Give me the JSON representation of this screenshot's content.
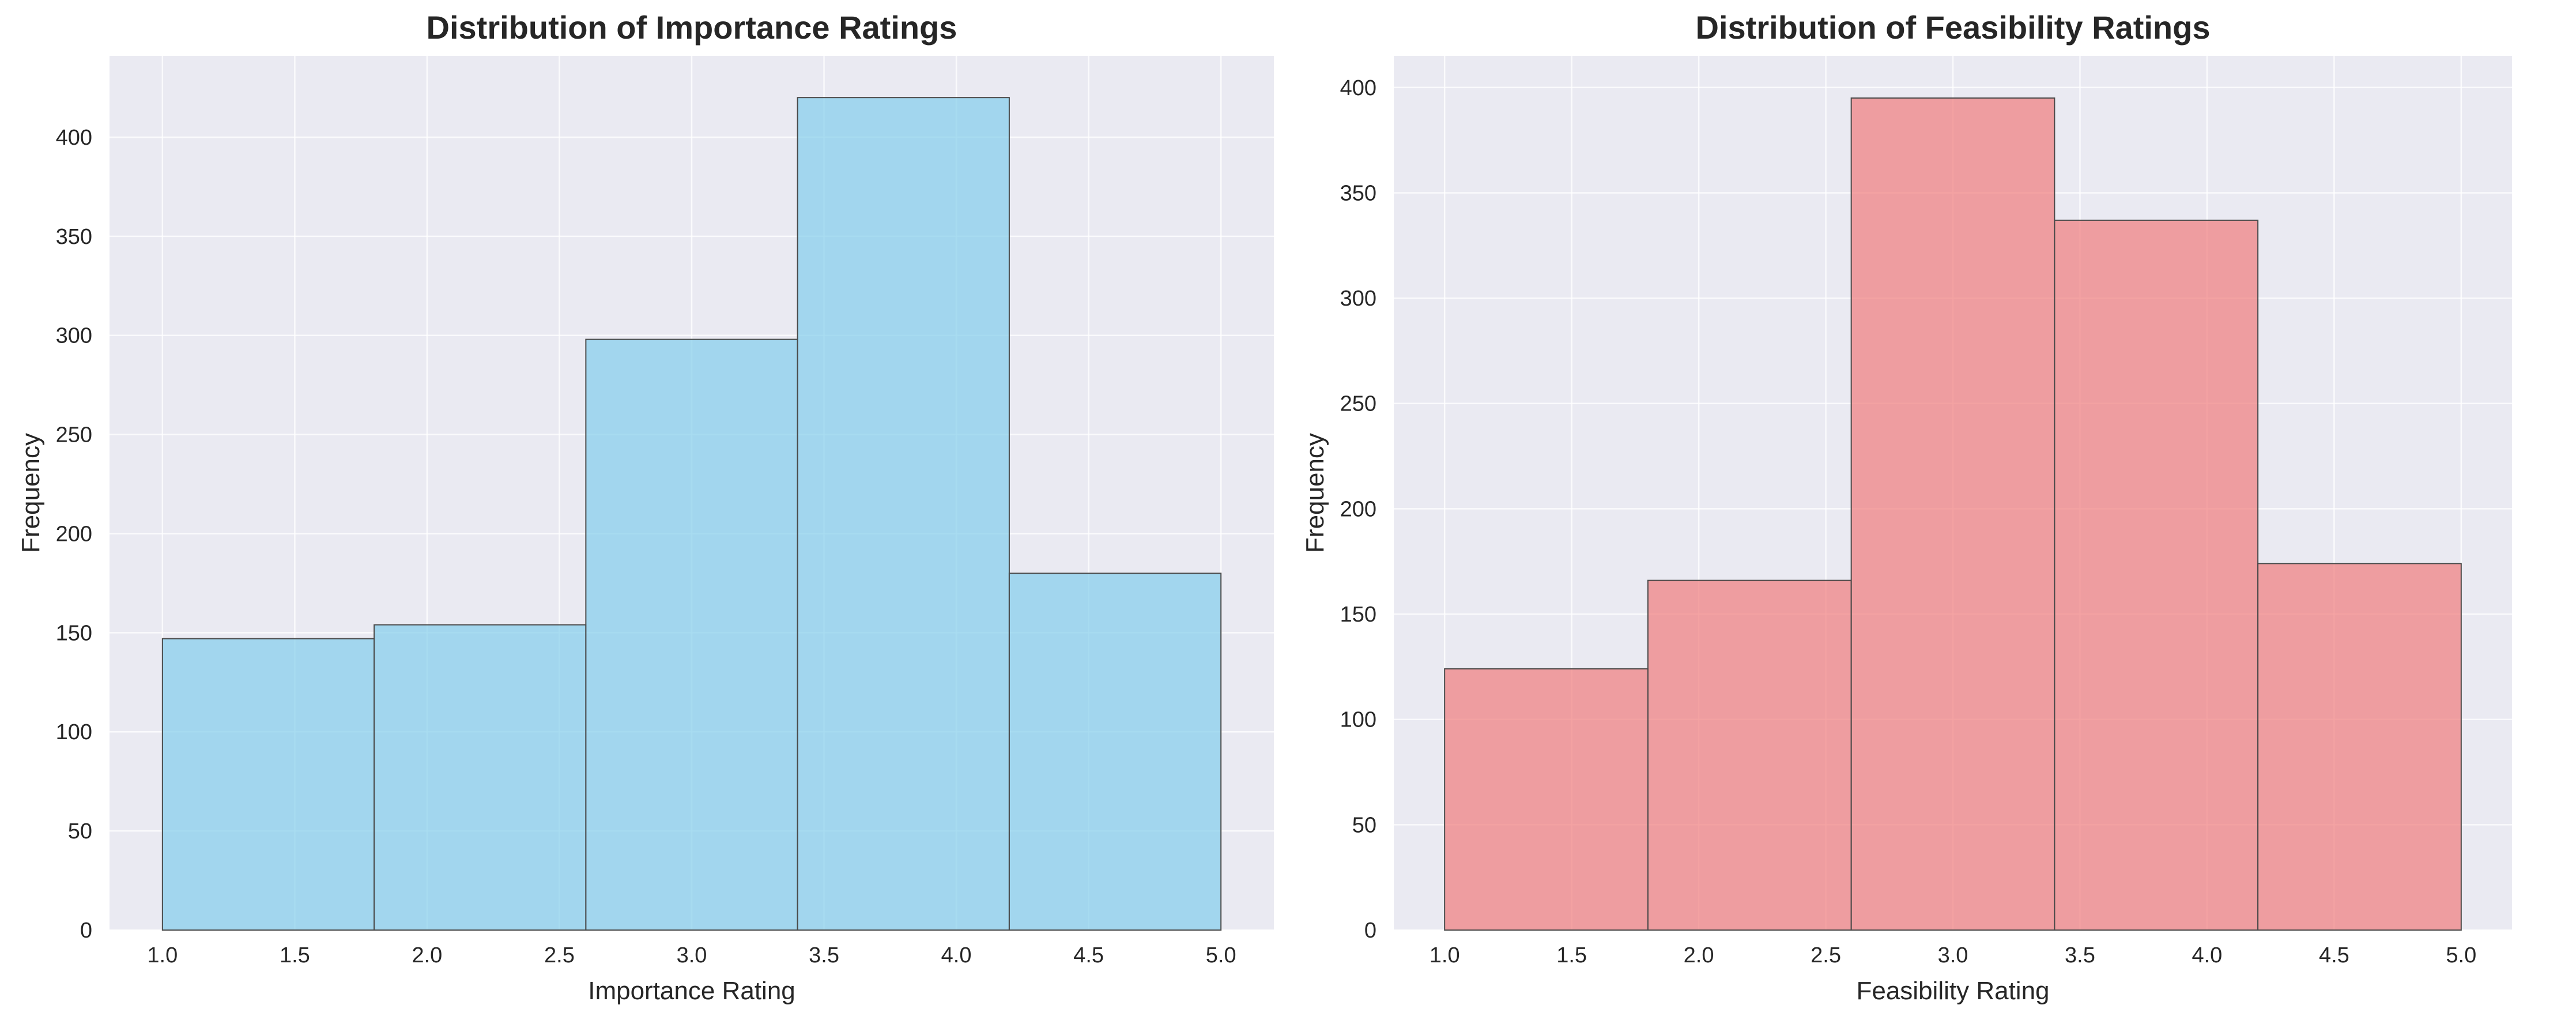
{
  "chart_data": [
    {
      "type": "bar",
      "title": "Distribution of Importance Ratings",
      "xlabel": "Importance Rating",
      "ylabel": "Frequency",
      "bins": [
        [
          1.0,
          1.8
        ],
        [
          1.8,
          2.6
        ],
        [
          2.6,
          3.4
        ],
        [
          3.4,
          4.2
        ],
        [
          4.2,
          5.0
        ]
      ],
      "values": [
        147,
        154,
        298,
        420,
        180
      ],
      "xlim": [
        0.8,
        5.2
      ],
      "ylim": [
        0,
        441
      ],
      "xticks": [
        "1.0",
        "1.5",
        "2.0",
        "2.5",
        "3.0",
        "3.5",
        "4.0",
        "4.5",
        "5.0"
      ],
      "yticks": [
        "0",
        "50",
        "100",
        "150",
        "200",
        "250",
        "300",
        "350",
        "400"
      ],
      "grid": true,
      "bar_color": "#87CEEB",
      "edge_color": "#4a4a4a"
    },
    {
      "type": "bar",
      "title": "Distribution of Feasibility Ratings",
      "xlabel": "Feasibility Rating",
      "ylabel": "Frequency",
      "bins": [
        [
          1.0,
          1.8
        ],
        [
          1.8,
          2.6
        ],
        [
          2.6,
          3.4
        ],
        [
          3.4,
          4.2
        ],
        [
          4.2,
          5.0
        ]
      ],
      "values": [
        124,
        166,
        395,
        337,
        174
      ],
      "xlim": [
        0.8,
        5.2
      ],
      "ylim": [
        0,
        415
      ],
      "xticks": [
        "1.0",
        "1.5",
        "2.0",
        "2.5",
        "3.0",
        "3.5",
        "4.0",
        "4.5",
        "5.0"
      ],
      "yticks": [
        "0",
        "50",
        "100",
        "150",
        "200",
        "250",
        "300",
        "350",
        "400"
      ],
      "grid": true,
      "bar_color": "#F08080",
      "edge_color": "#4a4a4a"
    }
  ]
}
